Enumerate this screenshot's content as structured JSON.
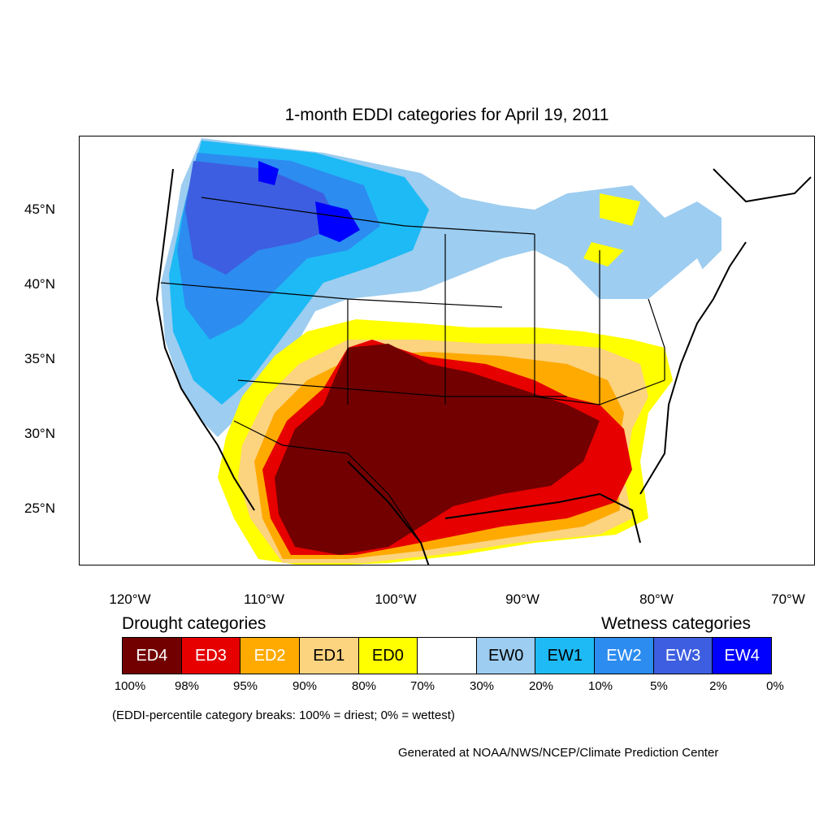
{
  "title": "1-month EDDI categories for April 19, 2011",
  "lat_labels": [
    "45°N",
    "40°N",
    "35°N",
    "30°N",
    "25°N"
  ],
  "lon_labels": [
    "120°W",
    "110°W",
    "100°W",
    "90°W",
    "80°W",
    "70°W"
  ],
  "legend": {
    "drought_heading": "Drought categories",
    "wetness_heading": "Wetness categories",
    "categories": [
      {
        "label": "ED4",
        "color": "#730000",
        "text_color": "#ffffff"
      },
      {
        "label": "ED3",
        "color": "#e60000",
        "text_color": "#ffffff"
      },
      {
        "label": "ED2",
        "color": "#ffaa00",
        "text_color": "#ffffff"
      },
      {
        "label": "ED1",
        "color": "#fcd37f",
        "text_color": "#000000"
      },
      {
        "label": "ED0",
        "color": "#ffff00",
        "text_color": "#000000"
      },
      {
        "label": "",
        "color": "#ffffff",
        "text_color": "#000000"
      },
      {
        "label": "EW0",
        "color": "#9dcdf0",
        "text_color": "#000000"
      },
      {
        "label": "EW1",
        "color": "#1ebaf5",
        "text_color": "#000000"
      },
      {
        "label": "EW2",
        "color": "#2c8cf0",
        "text_color": "#ffffff"
      },
      {
        "label": "EW3",
        "color": "#3d5ee0",
        "text_color": "#ffffff"
      },
      {
        "label": "EW4",
        "color": "#0000ff",
        "text_color": "#ffffff"
      }
    ],
    "breaks": [
      "100%",
      "98%",
      "95%",
      "90%",
      "80%",
      "70%",
      "30%",
      "20%",
      "10%",
      "5%",
      "2%",
      "0%"
    ],
    "note": "(EDDI-percentile category breaks: 100% = driest; 0% = wettest)"
  },
  "credit": "Generated at NOAA/NWS/NCEP/Climate Prediction Center"
}
